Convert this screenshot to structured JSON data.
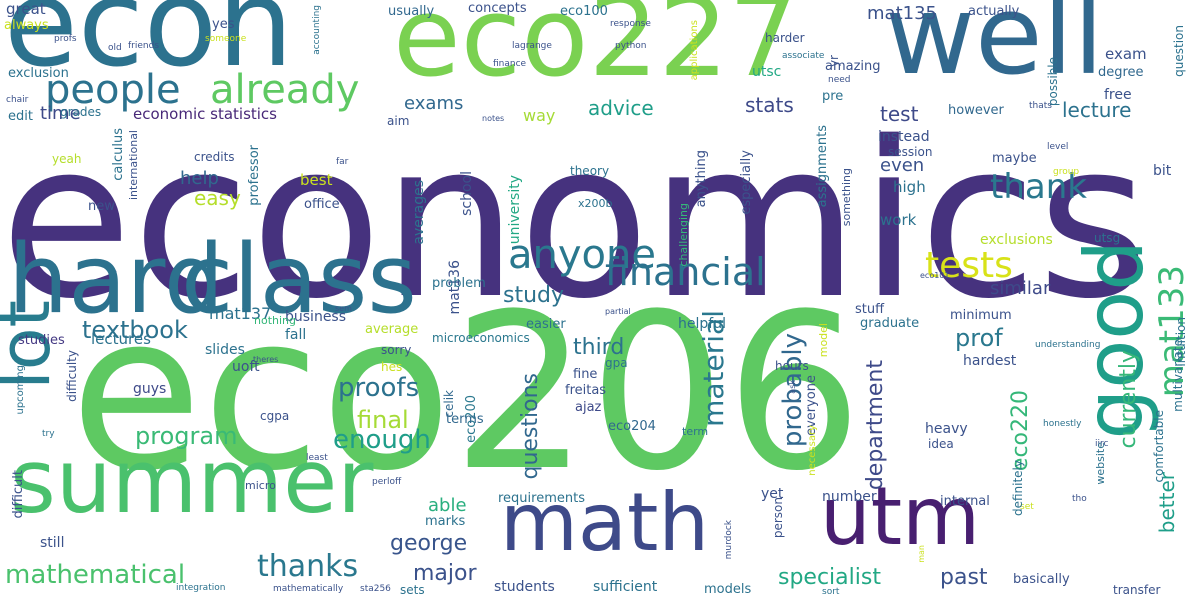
{
  "palette": {
    "dark_purple": "#440154",
    "indigo": "#46327e",
    "slate_blue": "#365c8d",
    "teal_blue": "#277f8e",
    "teal": "#1fa187",
    "green": "#4ac16d",
    "light_green": "#a0da39",
    "yellow": "#fde725"
  },
  "words": [
    {
      "text": "economics",
      "size": 215,
      "color": "#46327e"
    },
    {
      "text": "eco206",
      "size": 215,
      "color": "#5ec962"
    },
    {
      "text": "econ",
      "size": 120,
      "color": "#2c728e"
    },
    {
      "text": "eco227",
      "size": 110,
      "color": "#7ad151"
    },
    {
      "text": "well",
      "size": 110,
      "color": "#31688e"
    },
    {
      "text": "hard",
      "size": 95,
      "color": "#2c728e"
    },
    {
      "text": "class",
      "size": 95,
      "color": "#2c728e"
    },
    {
      "text": "summer",
      "size": 88,
      "color": "#4ac16d"
    },
    {
      "text": "math",
      "size": 80,
      "color": "#3e4a89"
    },
    {
      "text": "utm",
      "size": 80,
      "color": "#481f70"
    },
    {
      "text": "good",
      "size": 80,
      "color": "#1f9e89"
    },
    {
      "text": "lot",
      "size": 70,
      "color": "#287c8e"
    },
    {
      "text": "people",
      "size": 40,
      "color": "#2c728e"
    },
    {
      "text": "already",
      "size": 40,
      "color": "#5ec962"
    },
    {
      "text": "anyone",
      "size": 40,
      "color": "#2a788e"
    },
    {
      "text": "financial",
      "size": 38,
      "color": "#2c728e"
    },
    {
      "text": "tests",
      "size": 36,
      "color": "#d8e219"
    },
    {
      "text": "thank",
      "size": 34,
      "color": "#2a788e"
    },
    {
      "text": "mat133",
      "size": 34,
      "color": "#3aba76"
    },
    {
      "text": "thanks",
      "size": 30,
      "color": "#2a788e"
    },
    {
      "text": "mathematical",
      "size": 26,
      "color": "#4ac16d"
    },
    {
      "text": "material",
      "size": 28,
      "color": "#2a788e"
    },
    {
      "text": "probably",
      "size": 26,
      "color": "#31688e"
    },
    {
      "text": "proofs",
      "size": 26,
      "color": "#2c728e"
    },
    {
      "text": "program",
      "size": 24,
      "color": "#3aba76"
    },
    {
      "text": "enough",
      "size": 26,
      "color": "#1f9e89"
    },
    {
      "text": "final",
      "size": 24,
      "color": "#a5db36"
    },
    {
      "text": "textbook",
      "size": 24,
      "color": "#2c728e"
    },
    {
      "text": "study",
      "size": 22,
      "color": "#2c728e"
    },
    {
      "text": "george",
      "size": 22,
      "color": "#39558c"
    },
    {
      "text": "major",
      "size": 22,
      "color": "#3b528b"
    },
    {
      "text": "specialist",
      "size": 22,
      "color": "#22a884"
    },
    {
      "text": "past",
      "size": 22,
      "color": "#3b528b"
    },
    {
      "text": "prof",
      "size": 24,
      "color": "#2a788e"
    },
    {
      "text": "third",
      "size": 22,
      "color": "#2c728e"
    },
    {
      "text": "questions",
      "size": 22,
      "color": "#31688e"
    },
    {
      "text": "department",
      "size": 22,
      "color": "#3e4a89"
    },
    {
      "text": "currently",
      "size": 22,
      "color": "#35b779"
    },
    {
      "text": "eco220",
      "size": 22,
      "color": "#35b779"
    },
    {
      "text": "better",
      "size": 20,
      "color": "#1f9e89"
    },
    {
      "text": "lecture",
      "size": 20,
      "color": "#2c728e"
    },
    {
      "text": "test",
      "size": 20,
      "color": "#3e4a89"
    },
    {
      "text": "stats",
      "size": 20,
      "color": "#3e4a89"
    },
    {
      "text": "advice",
      "size": 20,
      "color": "#1f9e89"
    },
    {
      "text": "exams",
      "size": 18,
      "color": "#31688e"
    },
    {
      "text": "time",
      "size": 18,
      "color": "#3e4a89"
    },
    {
      "text": "help",
      "size": 18,
      "color": "#31688e"
    },
    {
      "text": "easy",
      "size": 20,
      "color": "#b5de2b"
    },
    {
      "text": "even",
      "size": 18,
      "color": "#3b528b"
    },
    {
      "text": "similar",
      "size": 18,
      "color": "#3e4a89"
    },
    {
      "text": "able",
      "size": 18,
      "color": "#29af7f"
    },
    {
      "text": "mat135",
      "size": 18,
      "color": "#3b528b"
    },
    {
      "text": "exam",
      "size": 15,
      "color": "#3b528b"
    },
    {
      "text": "economic statistics",
      "size": 15,
      "color": "#482878"
    },
    {
      "text": "way",
      "size": 16,
      "color": "#a5db36"
    },
    {
      "text": "mat137",
      "size": 16,
      "color": "#2c728e"
    },
    {
      "text": "mat136",
      "size": 14,
      "color": "#3b528b"
    },
    {
      "text": "lectures",
      "size": 15,
      "color": "#2c728e"
    },
    {
      "text": "studies",
      "size": 13,
      "color": "#443983"
    },
    {
      "text": "business",
      "size": 14,
      "color": "#3b528b"
    },
    {
      "text": "slides",
      "size": 14,
      "color": "#2c728e"
    },
    {
      "text": "uoft",
      "size": 14,
      "color": "#3b528b"
    },
    {
      "text": "guys",
      "size": 14,
      "color": "#3e4a89"
    },
    {
      "text": "still",
      "size": 14,
      "color": "#3b528b"
    },
    {
      "text": "fall",
      "size": 14,
      "color": "#2c728e"
    },
    {
      "text": "average",
      "size": 13,
      "color": "#b5de2b"
    },
    {
      "text": "sorry",
      "size": 12,
      "color": "#3b528b"
    },
    {
      "text": "hes",
      "size": 12,
      "color": "#cae11f"
    },
    {
      "text": "microeconomics",
      "size": 12,
      "color": "#2a788e"
    },
    {
      "text": "celik",
      "size": 12,
      "color": "#31688e"
    },
    {
      "text": "eco200",
      "size": 13,
      "color": "#2a788e"
    },
    {
      "text": "fine",
      "size": 13,
      "color": "#3b528b"
    },
    {
      "text": "freitas",
      "size": 13,
      "color": "#3b528b"
    },
    {
      "text": "ajaz",
      "size": 13,
      "color": "#3e4a89"
    },
    {
      "text": "terms",
      "size": 13,
      "color": "#31688e"
    },
    {
      "text": "eco204",
      "size": 13,
      "color": "#31688e"
    },
    {
      "text": "requirements",
      "size": 13,
      "color": "#2c728e"
    },
    {
      "text": "marks",
      "size": 13,
      "color": "#2c728e"
    },
    {
      "text": "students",
      "size": 14,
      "color": "#3b528b"
    },
    {
      "text": "sufficient",
      "size": 14,
      "color": "#2c728e"
    },
    {
      "text": "models",
      "size": 13,
      "color": "#2c728e"
    },
    {
      "text": "sets",
      "size": 12,
      "color": "#2c728e"
    },
    {
      "text": "yet",
      "size": 14,
      "color": "#3b528b"
    },
    {
      "text": "number",
      "size": 14,
      "color": "#3b528b"
    },
    {
      "text": "internal",
      "size": 13,
      "color": "#3b528b"
    },
    {
      "text": "heavy",
      "size": 14,
      "color": "#3b528b"
    },
    {
      "text": "idea",
      "size": 12,
      "color": "#3b528b"
    },
    {
      "text": "hardest",
      "size": 14,
      "color": "#3b528b"
    },
    {
      "text": "graduate",
      "size": 13,
      "color": "#2c728e"
    },
    {
      "text": "stuff",
      "size": 13,
      "color": "#3b528b"
    },
    {
      "text": "minimum",
      "size": 13,
      "color": "#3b528b"
    },
    {
      "text": "helpful",
      "size": 14,
      "color": "#2c728e"
    },
    {
      "text": "problem",
      "size": 13,
      "color": "#2c728e"
    },
    {
      "text": "easier",
      "size": 13,
      "color": "#2c728e"
    },
    {
      "text": "gpa",
      "size": 12,
      "color": "#2c728e"
    },
    {
      "text": "hours",
      "size": 12,
      "color": "#3b528b"
    },
    {
      "text": "work",
      "size": 15,
      "color": "#2c728e"
    },
    {
      "text": "high",
      "size": 15,
      "color": "#2c728e"
    },
    {
      "text": "maybe",
      "size": 13,
      "color": "#3b528b"
    },
    {
      "text": "bit",
      "size": 14,
      "color": "#3b528b"
    },
    {
      "text": "exclusions",
      "size": 14,
      "color": "#b5de2b"
    },
    {
      "text": "utsg",
      "size": 12,
      "color": "#2c728e"
    },
    {
      "text": "intuition",
      "size": 12,
      "color": "#2c728e"
    },
    {
      "text": "instead",
      "size": 14,
      "color": "#3b528b"
    },
    {
      "text": "session",
      "size": 12,
      "color": "#3b528b"
    },
    {
      "text": "however",
      "size": 13,
      "color": "#31688e"
    },
    {
      "text": "free",
      "size": 14,
      "color": "#3b528b"
    },
    {
      "text": "degree",
      "size": 13,
      "color": "#31688e"
    },
    {
      "text": "actually",
      "size": 13,
      "color": "#3b528b"
    },
    {
      "text": "usually",
      "size": 13,
      "color": "#31688e"
    },
    {
      "text": "concepts",
      "size": 13,
      "color": "#3b528b"
    },
    {
      "text": "eco100",
      "size": 13,
      "color": "#2c728e"
    },
    {
      "text": "harder",
      "size": 12,
      "color": "#3b528b"
    },
    {
      "text": "utsc",
      "size": 14,
      "color": "#22a884"
    },
    {
      "text": "amazing",
      "size": 13,
      "color": "#3b528b"
    },
    {
      "text": "pre",
      "size": 13,
      "color": "#2c728e"
    },
    {
      "text": "yes",
      "size": 13,
      "color": "#3b528b"
    },
    {
      "text": "great",
      "size": 15,
      "color": "#3b528b"
    },
    {
      "text": "always",
      "size": 13,
      "color": "#cae11f"
    },
    {
      "text": "exclusion",
      "size": 13,
      "color": "#2c728e"
    },
    {
      "text": "edit",
      "size": 13,
      "color": "#2c728e"
    },
    {
      "text": "grades",
      "size": 12,
      "color": "#2c728e"
    },
    {
      "text": "yeah",
      "size": 12,
      "color": "#b5de2b"
    },
    {
      "text": "credits",
      "size": 12,
      "color": "#3b528b"
    },
    {
      "text": "best",
      "size": 15,
      "color": "#cae11f"
    },
    {
      "text": "office",
      "size": 13,
      "color": "#3b528b"
    },
    {
      "text": "new",
      "size": 13,
      "color": "#3b528b"
    },
    {
      "text": "theory",
      "size": 12,
      "color": "#2c728e"
    },
    {
      "text": "x200b",
      "size": 11,
      "color": "#2c728e"
    },
    {
      "text": "nothing",
      "size": 11,
      "color": "#35b779"
    },
    {
      "text": "upcoming",
      "size": 10,
      "color": "#2c728e"
    },
    {
      "text": "cgpa",
      "size": 12,
      "color": "#3b528b"
    },
    {
      "text": "micro",
      "size": 11,
      "color": "#3b528b"
    },
    {
      "text": "integration",
      "size": 9,
      "color": "#2c728e"
    },
    {
      "text": "mathematically",
      "size": 9,
      "color": "#3b528b"
    },
    {
      "text": "sta256",
      "size": 9,
      "color": "#3b528b"
    },
    {
      "text": "transfer",
      "size": 12,
      "color": "#3b528b"
    },
    {
      "text": "basically",
      "size": 13,
      "color": "#3b528b"
    },
    {
      "text": "term",
      "size": 11,
      "color": "#2c728e"
    },
    {
      "text": "perloff",
      "size": 9,
      "color": "#3b528b"
    },
    {
      "text": "sem",
      "size": 8,
      "color": "#3b528b"
    },
    {
      "text": "partial",
      "size": 8,
      "color": "#3b528b"
    },
    {
      "text": "theres",
      "size": 8,
      "color": "#3b528b"
    },
    {
      "text": "notes",
      "size": 8,
      "color": "#3b528b"
    },
    {
      "text": "aim",
      "size": 12,
      "color": "#3b528b"
    },
    {
      "text": "chair",
      "size": 9,
      "color": "#3b528b"
    },
    {
      "text": "response",
      "size": 9,
      "color": "#3b528b"
    },
    {
      "text": "python",
      "size": 9,
      "color": "#3b528b"
    },
    {
      "text": "lagrange",
      "size": 9,
      "color": "#3b528b"
    },
    {
      "text": "finance",
      "size": 9,
      "color": "#3b528b"
    },
    {
      "text": "friends",
      "size": 9,
      "color": "#3b528b"
    },
    {
      "text": "old",
      "size": 9,
      "color": "#3b528b"
    },
    {
      "text": "profs",
      "size": 9,
      "color": "#3b528b"
    },
    {
      "text": "someone",
      "size": 9,
      "color": "#cae11f"
    },
    {
      "text": "associate",
      "size": 9,
      "color": "#2c728e"
    },
    {
      "text": "need",
      "size": 9,
      "color": "#3b528b"
    },
    {
      "text": "thats",
      "size": 9,
      "color": "#3b528b"
    },
    {
      "text": "level",
      "size": 9,
      "color": "#3b528b"
    },
    {
      "text": "group",
      "size": 9,
      "color": "#cae11f"
    },
    {
      "text": "eco101",
      "size": 8,
      "color": "#3b528b"
    },
    {
      "text": "understanding",
      "size": 9,
      "color": "#2c728e"
    },
    {
      "text": "honestly",
      "size": 9,
      "color": "#2c728e"
    },
    {
      "text": "iirc",
      "size": 9,
      "color": "#3b528b"
    },
    {
      "text": "tho",
      "size": 9,
      "color": "#3b528b"
    },
    {
      "text": "set",
      "size": 9,
      "color": "#cae11f"
    },
    {
      "text": "sort",
      "size": 9,
      "color": "#2c728e"
    },
    {
      "text": "least",
      "size": 9,
      "color": "#3b528b"
    },
    {
      "text": "try",
      "size": 9,
      "color": "#2c728e"
    },
    {
      "text": "far",
      "size": 9,
      "color": "#3b528b"
    },
    {
      "text": "ask",
      "size": 8,
      "color": "#3b528b"
    },
    {
      "text": "possible",
      "size": 12,
      "color": "#2c728e"
    },
    {
      "text": "question",
      "size": 12,
      "color": "#2c728e"
    },
    {
      "text": "yr",
      "size": 12,
      "color": "#3b528b"
    },
    {
      "text": "applications",
      "size": 10,
      "color": "#cae11f"
    },
    {
      "text": "accounting",
      "size": 9,
      "color": "#2c728e"
    },
    {
      "text": "calculus",
      "size": 13,
      "color": "#2c728e"
    },
    {
      "text": "international",
      "size": 11,
      "color": "#3b528b"
    },
    {
      "text": "averages",
      "size": 14,
      "color": "#2c728e"
    },
    {
      "text": "professor",
      "size": 13,
      "color": "#2c728e"
    },
    {
      "text": "school",
      "size": 14,
      "color": "#3b528b"
    },
    {
      "text": "university",
      "size": 14,
      "color": "#22a884"
    },
    {
      "text": "challenging",
      "size": 11,
      "color": "#35b779"
    },
    {
      "text": "anything",
      "size": 13,
      "color": "#3b528b"
    },
    {
      "text": "especially",
      "size": 13,
      "color": "#3b528b"
    },
    {
      "text": "assignments",
      "size": 13,
      "color": "#2c728e"
    },
    {
      "text": "something",
      "size": 11,
      "color": "#3b528b"
    },
    {
      "text": "difficulty",
      "size": 12,
      "color": "#3b528b"
    },
    {
      "text": "difficult",
      "size": 13,
      "color": "#3b528b"
    },
    {
      "text": "everyone",
      "size": 13,
      "color": "#3b528b"
    },
    {
      "text": "person",
      "size": 12,
      "color": "#3b528b"
    },
    {
      "text": "murdock",
      "size": 9,
      "color": "#3b528b"
    },
    {
      "text": "necessary",
      "size": 10,
      "color": "#cae11f"
    },
    {
      "text": "model",
      "size": 11,
      "color": "#cae11f"
    },
    {
      "text": "comfortable",
      "size": 12,
      "color": "#2c728e"
    },
    {
      "text": "multivariate",
      "size": 12,
      "color": "#2c728e"
    },
    {
      "text": "website",
      "size": 11,
      "color": "#2c728e"
    },
    {
      "text": "definitely",
      "size": 12,
      "color": "#2c728e"
    },
    {
      "text": "man",
      "size": 8,
      "color": "#cae11f"
    }
  ]
}
